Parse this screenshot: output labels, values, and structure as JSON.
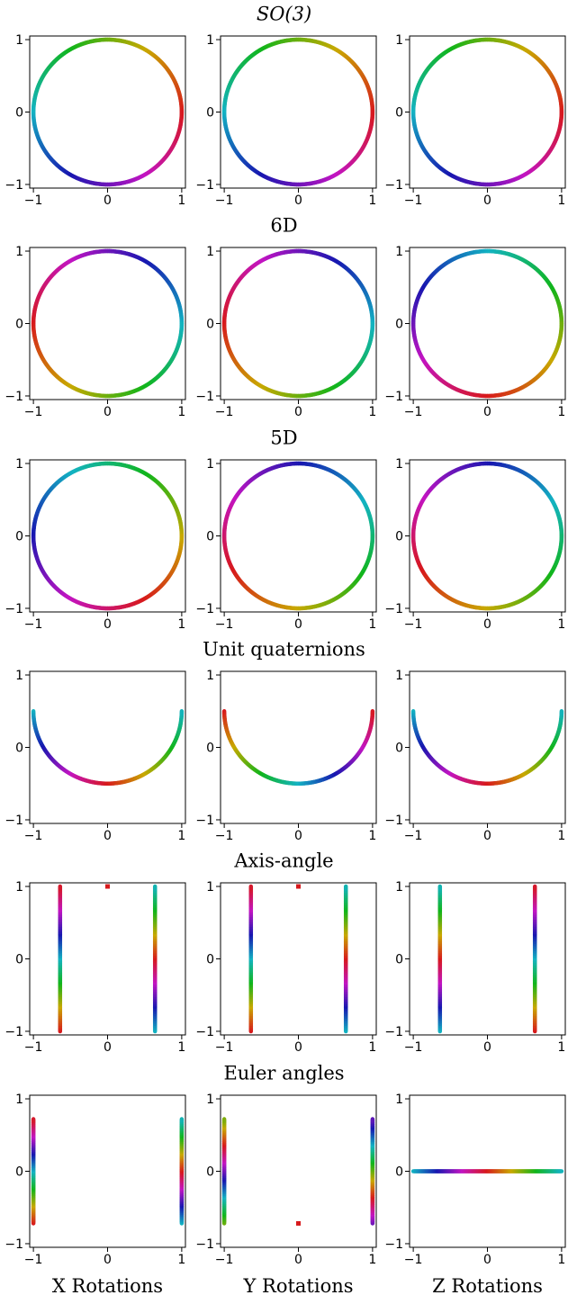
{
  "rows": [
    {
      "title": "SO(3)"
    },
    {
      "title": "6D"
    },
    {
      "title": "5D"
    },
    {
      "title": "Unit quaternions"
    },
    {
      "title": "Axis-angle"
    },
    {
      "title": "Euler angles"
    }
  ],
  "column_labels": [
    "X Rotations",
    "Y Rotations",
    "Z Rotations"
  ],
  "axis": {
    "xlim": [
      -1.05,
      1.05
    ],
    "ylim": [
      -1.05,
      1.05
    ],
    "xticks": [
      -1,
      0,
      1
    ],
    "yticks": [
      -1,
      0,
      1
    ],
    "tick_labels": [
      "−1",
      "0",
      "1"
    ]
  },
  "colormap": [
    "#d7191c",
    "#c8a800",
    "#11b51b",
    "#13b3c2",
    "#1717b0",
    "#c214c2",
    "#d7191c"
  ],
  "chart_data": [
    {
      "type": "line",
      "row": 0,
      "col": 0,
      "shape": "circle",
      "radius": 1,
      "center": [
        0,
        0
      ],
      "color_phase": 0.0
    },
    {
      "type": "line",
      "row": 0,
      "col": 1,
      "shape": "circle",
      "radius": 1,
      "center": [
        0,
        0
      ],
      "color_phase": 0.0
    },
    {
      "type": "line",
      "row": 0,
      "col": 2,
      "shape": "circle",
      "radius": 1,
      "center": [
        0,
        0
      ],
      "color_phase": 0.0
    },
    {
      "type": "line",
      "row": 1,
      "col": 0,
      "shape": "circle",
      "radius": 1,
      "center": [
        0,
        0
      ],
      "color_phase": 0.5
    },
    {
      "type": "line",
      "row": 1,
      "col": 1,
      "shape": "circle",
      "radius": 1,
      "center": [
        0,
        0
      ],
      "color_phase": 0.5
    },
    {
      "type": "line",
      "row": 1,
      "col": 2,
      "shape": "circle",
      "radius": 1,
      "center": [
        0,
        0
      ],
      "color_phase": 0.25
    },
    {
      "type": "line",
      "row": 2,
      "col": 0,
      "shape": "circle",
      "radius": 1,
      "center": [
        0,
        0
      ],
      "color_phase": 0.17
    },
    {
      "type": "line",
      "row": 2,
      "col": 1,
      "shape": "circle",
      "radius": 1,
      "center": [
        0,
        0
      ],
      "color_phase": 0.42
    },
    {
      "type": "line",
      "row": 2,
      "col": 2,
      "shape": "circle",
      "radius": 1,
      "center": [
        0,
        0
      ],
      "color_phase": 0.42
    },
    {
      "type": "line",
      "row": 3,
      "col": 0,
      "shape": "semicircle",
      "radius": 1,
      "center": [
        0,
        0.5
      ],
      "color_phase": 0.5
    },
    {
      "type": "line",
      "row": 3,
      "col": 1,
      "shape": "semicircle",
      "radius": 1,
      "center": [
        0,
        0.5
      ],
      "color_phase": 0.0
    },
    {
      "type": "line",
      "row": 3,
      "col": 2,
      "shape": "semicircle",
      "radius": 1,
      "center": [
        0,
        0.5
      ],
      "color_phase": 0.5
    },
    {
      "type": "line",
      "row": 4,
      "col": 0,
      "shape": "vlines",
      "x": [
        -0.64,
        0.64
      ],
      "y_range": [
        -1,
        1
      ],
      "color_phase": 0.0,
      "point": [
        0,
        1
      ]
    },
    {
      "type": "line",
      "row": 4,
      "col": 1,
      "shape": "vlines",
      "x": [
        -0.64,
        0.64
      ],
      "y_range": [
        -1,
        1
      ],
      "color_phase": 0.0,
      "point": [
        0,
        1
      ]
    },
    {
      "type": "line",
      "row": 4,
      "col": 2,
      "shape": "vlines",
      "x": [
        -0.64,
        0.64
      ],
      "y_range": [
        -1,
        1
      ],
      "color_phase": 0.5
    },
    {
      "type": "line",
      "row": 5,
      "col": 0,
      "shape": "vlines",
      "x": [
        -1,
        1
      ],
      "y_range": [
        -0.72,
        0.72
      ],
      "color_phase": 0.0
    },
    {
      "type": "line",
      "row": 5,
      "col": 1,
      "shape": "vlines",
      "x": [
        -1,
        1
      ],
      "y_range": [
        -0.72,
        0.72
      ],
      "color_phase": 0.25,
      "point": [
        0,
        -0.72
      ]
    },
    {
      "type": "line",
      "row": 5,
      "col": 2,
      "shape": "hline",
      "y": 0,
      "x_range": [
        -1,
        1
      ],
      "color_phase": 0.5
    }
  ]
}
